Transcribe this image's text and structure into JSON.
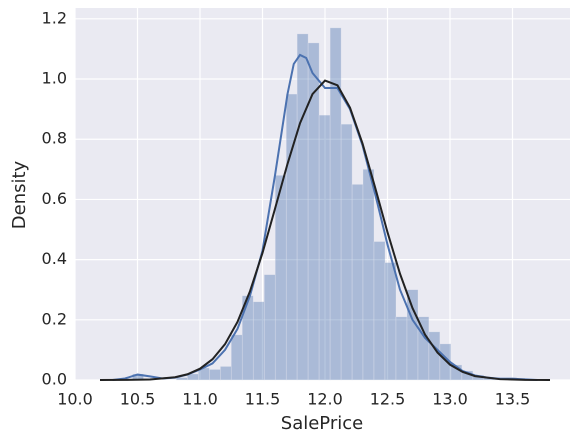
{
  "chart_data": {
    "type": "histogram",
    "xlabel": "SalePrice",
    "ylabel": "Density",
    "bins": [
      10.46,
      10.548,
      10.636,
      10.723,
      10.811,
      10.899,
      10.987,
      11.075,
      11.163,
      11.25,
      11.338,
      11.426,
      11.514,
      11.602,
      11.69,
      11.777,
      11.865,
      11.953,
      12.041,
      12.129,
      12.217,
      12.304,
      12.392,
      12.48,
      12.568,
      12.656,
      12.744,
      12.831,
      12.919,
      13.007,
      13.095,
      13.183,
      13.271,
      13.358,
      13.446,
      13.534
    ],
    "counts": [
      0.02,
      0,
      0,
      0,
      0.008,
      0.02,
      0.04,
      0.035,
      0.045,
      0.15,
      0.28,
      0.26,
      0.35,
      0.68,
      0.95,
      1.15,
      1.12,
      0.88,
      1.17,
      0.85,
      0.65,
      0.7,
      0.46,
      0.39,
      0.21,
      0.3,
      0.21,
      0.16,
      0.12,
      0.05,
      0.03,
      0.016,
      0.008,
      0.008,
      0.008
    ],
    "color": "#4c72b0",
    "lines": [
      {
        "color": "#4c72b0",
        "x": [
          10.3,
          10.4,
          10.5,
          10.6,
          10.7,
          10.8,
          10.9,
          11.0,
          11.1,
          11.2,
          11.3,
          11.4,
          11.5,
          11.6,
          11.7,
          11.75,
          11.8,
          11.85,
          11.9,
          12.0,
          12.05,
          12.1,
          12.2,
          12.3,
          12.4,
          12.5,
          12.6,
          12.7,
          12.8,
          12.9,
          13.0,
          13.1,
          13.2,
          13.3,
          13.4,
          13.5,
          13.6,
          13.7
        ],
        "values": [
          0.0,
          0.005,
          0.018,
          0.012,
          0.005,
          0.008,
          0.018,
          0.035,
          0.055,
          0.1,
          0.17,
          0.28,
          0.43,
          0.68,
          0.95,
          1.05,
          1.08,
          1.07,
          1.02,
          0.97,
          0.97,
          0.97,
          0.9,
          0.78,
          0.62,
          0.45,
          0.3,
          0.2,
          0.14,
          0.1,
          0.06,
          0.03,
          0.015,
          0.008,
          0.004,
          0.004,
          0.002,
          0.0
        ]
      },
      {
        "color": "#222222",
        "x": [
          10.2,
          10.4,
          10.6,
          10.8,
          10.9,
          11.0,
          11.1,
          11.2,
          11.3,
          11.4,
          11.5,
          11.6,
          11.7,
          11.8,
          11.9,
          12.0,
          12.1,
          12.2,
          12.3,
          12.4,
          12.5,
          12.6,
          12.7,
          12.8,
          12.9,
          13.0,
          13.1,
          13.2,
          13.4,
          13.6,
          13.8
        ],
        "values": [
          0.0,
          0.0003,
          0.0018,
          0.0093,
          0.019,
          0.0375,
          0.069,
          0.119,
          0.193,
          0.295,
          0.422,
          0.569,
          0.718,
          0.853,
          0.95,
          0.995,
          0.979,
          0.905,
          0.786,
          0.641,
          0.491,
          0.353,
          0.239,
          0.151,
          0.091,
          0.051,
          0.027,
          0.013,
          0.0027,
          0.0004,
          0.0
        ]
      }
    ],
    "xlim": [
      10.0,
      13.96
    ],
    "ylim": [
      0,
      1.236
    ],
    "xticks": [
      {
        "value": 10.0,
        "label": "10.0"
      },
      10.5,
      {
        "value": 11.0,
        "label": "11.0"
      },
      11.5,
      {
        "value": 12.0,
        "label": "12.0"
      },
      12.5,
      {
        "value": 13.0,
        "label": "13.0"
      },
      13.5
    ],
    "yticks": [
      {
        "value": 0,
        "label": "0.0"
      },
      0.2,
      0.4,
      0.6,
      0.8,
      {
        "value": 1.0,
        "label": "1.0"
      },
      1.2
    ],
    "grid": true
  }
}
